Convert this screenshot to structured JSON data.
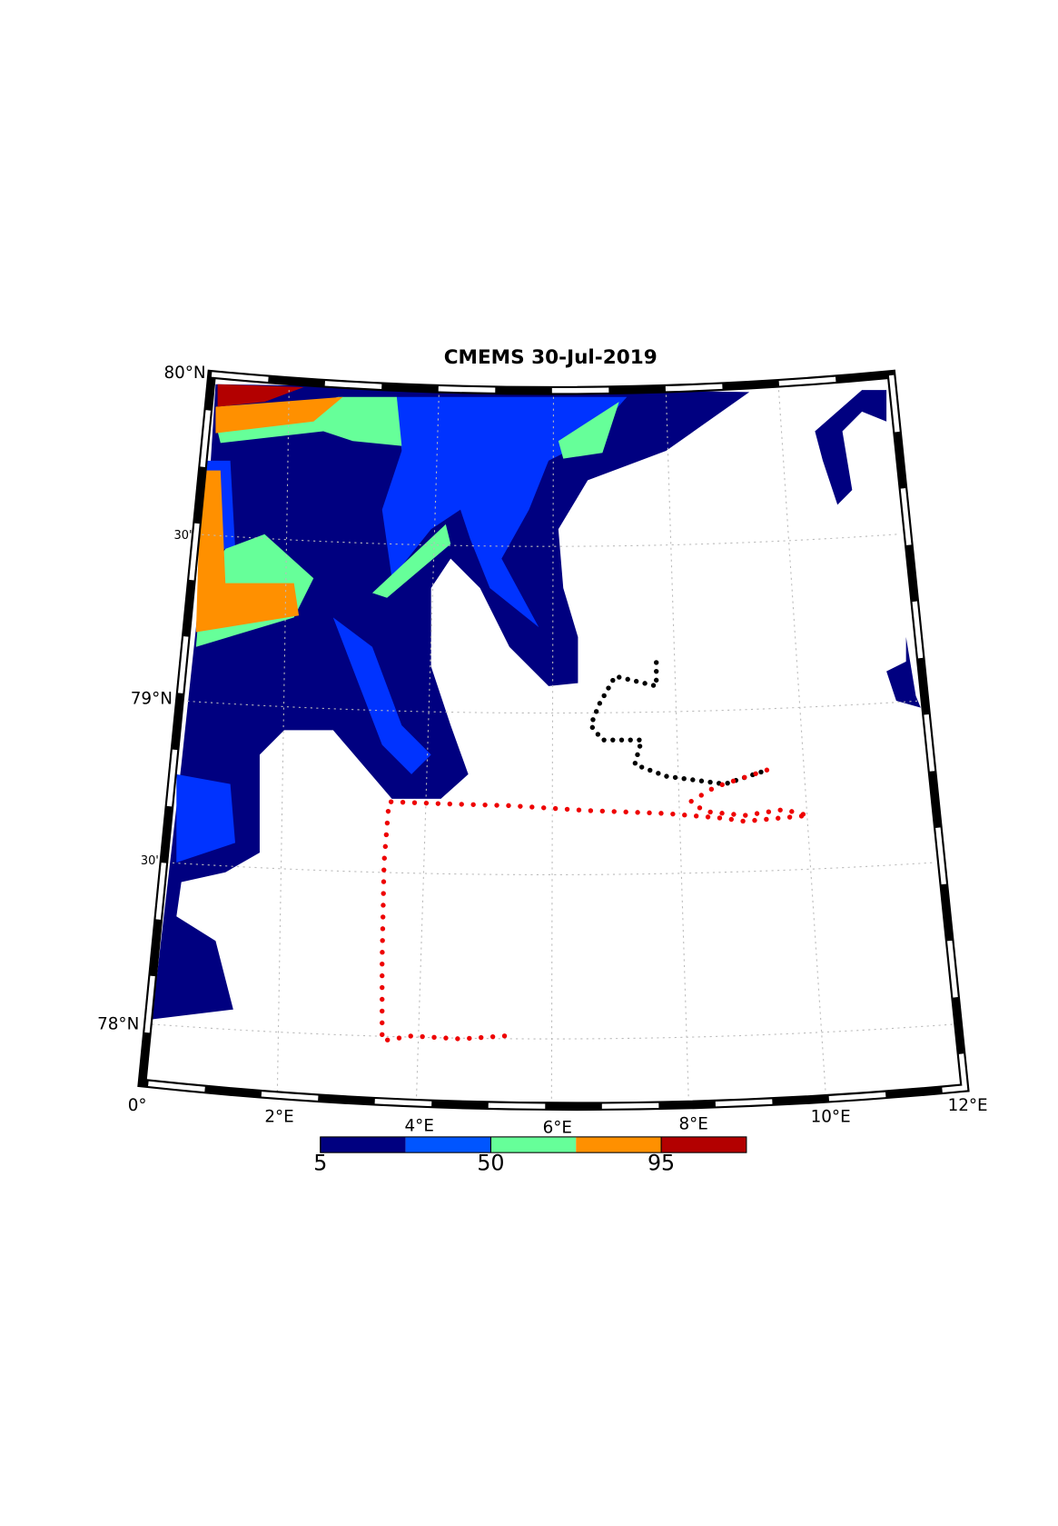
{
  "title": "CMEMS 30-Jul-2019",
  "lat_labels": [
    "80°N",
    "30'",
    "79°N",
    "30'",
    "78°N"
  ],
  "lon_labels": [
    "0°",
    "2°E",
    "4°E",
    "6°E",
    "8°E",
    "10°E",
    "12°E"
  ],
  "colorbar": {
    "lim": [
      5,
      117.5
    ],
    "ticks": [
      5,
      50,
      95
    ],
    "colors": [
      "#000080",
      "#0055ff",
      "#66ff99",
      "#ff9000",
      "#b30000"
    ]
  }
}
